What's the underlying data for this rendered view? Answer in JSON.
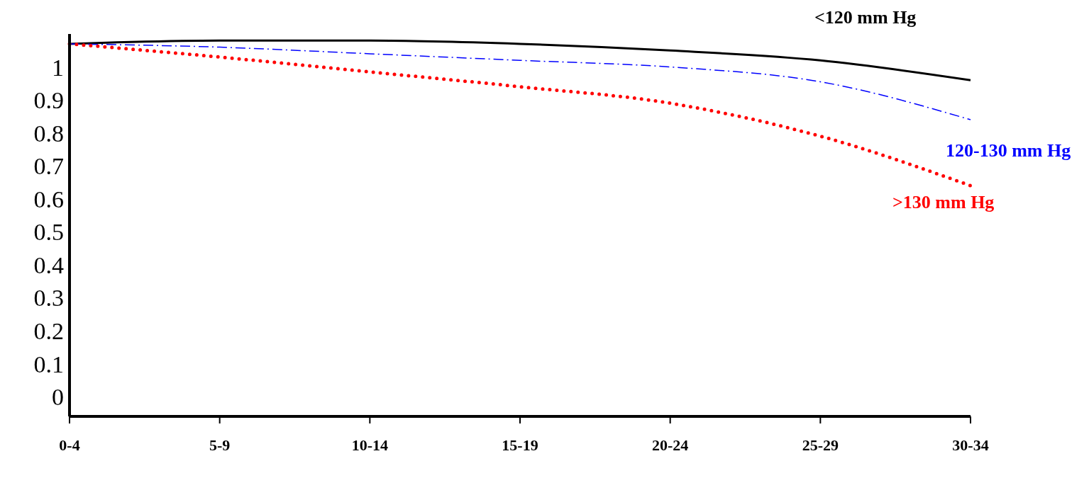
{
  "chart_data": {
    "type": "line",
    "categories": [
      "0-4",
      "5-9",
      "10-14",
      "15-19",
      "20-24",
      "25-29",
      "30-34"
    ],
    "series": [
      {
        "name": "<120 mm Hg",
        "color": "#000000",
        "line_style": "solid",
        "values": [
          1.07,
          1.08,
          1.08,
          1.07,
          1.05,
          1.02,
          0.96
        ]
      },
      {
        "name": "120-130 mm Hg",
        "color": "#0000ff",
        "line_style": "dashdot",
        "values": [
          1.07,
          1.06,
          1.04,
          1.02,
          1.0,
          0.955,
          0.84
        ]
      },
      {
        "name": ">130 mm Hg",
        "color": "#ff0000",
        "line_style": "dotted",
        "values": [
          1.07,
          1.03,
          0.985,
          0.94,
          0.89,
          0.79,
          0.64
        ]
      }
    ],
    "ylim": [
      -0.06,
      1.1
    ],
    "yticks": [
      0,
      0.1,
      0.2,
      0.3,
      0.4,
      0.5,
      0.6,
      0.7,
      0.8,
      0.9,
      1
    ],
    "grid": false,
    "legend": false,
    "marker": "none"
  }
}
